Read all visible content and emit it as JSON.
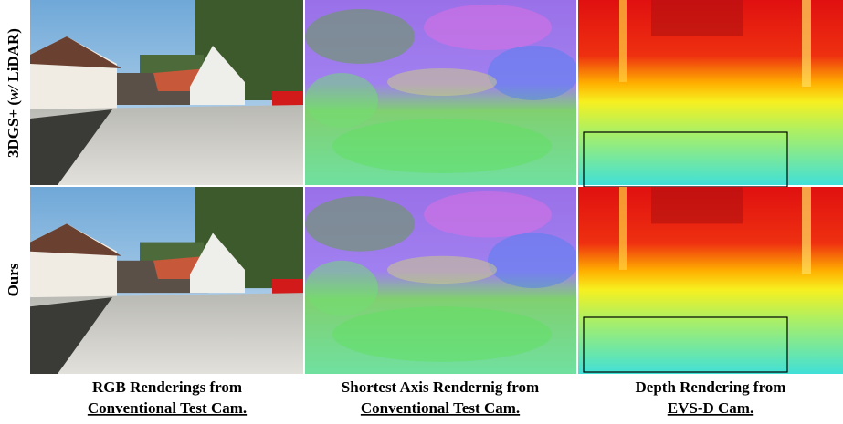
{
  "rows": [
    {
      "label": {
        "prefix": "3DGS+ (",
        "italic": "w/",
        "suffix": " LiDAR)"
      }
    },
    {
      "label": {
        "prefix": "Ours"
      }
    }
  ],
  "columns": [
    {
      "line1": "RGB Renderings from",
      "line2": "Conventional Test Cam."
    },
    {
      "line1": "Shortest Axis Rendernig from",
      "line2": "Conventional Test Cam."
    },
    {
      "line1": "Depth Rendering from",
      "line2": "EVS-D Cam."
    }
  ]
}
